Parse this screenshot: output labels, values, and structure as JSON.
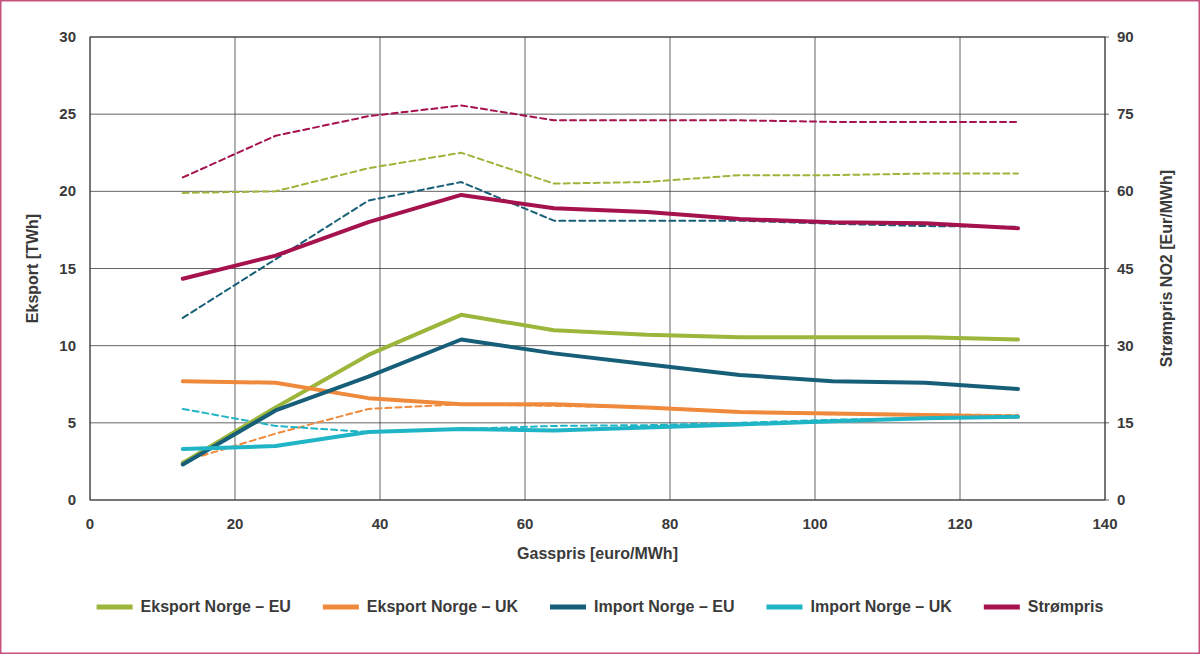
{
  "chart_data": {
    "type": "line",
    "x_label": "Gasspris [euro/MWh]",
    "y_label": "Eksport [TWh]",
    "y2_label": "Strømpris NO2 [Eur/MWh]",
    "x": [
      12.8,
      25.6,
      38.4,
      51.2,
      64,
      76.8,
      89.6,
      102.4,
      115.2,
      128
    ],
    "xlim": [
      0,
      140
    ],
    "xticks": [
      0,
      20,
      40,
      60,
      80,
      100,
      120,
      140
    ],
    "ylim": [
      0,
      30
    ],
    "yticks": [
      0,
      5,
      10,
      15,
      20,
      25,
      30
    ],
    "y2lim": [
      0,
      90
    ],
    "y2ticks": [
      0,
      15,
      30,
      45,
      60,
      75,
      90
    ],
    "grid": true,
    "legend": "bottom",
    "series": [
      {
        "name": "Eksport Norge – EU",
        "color": "#9cb53b",
        "line_style": "solid",
        "values": [
          2.4,
          6.0,
          9.4,
          12.0,
          11.0,
          10.7,
          10.55,
          10.55,
          10.55,
          10.4
        ]
      },
      {
        "name": "Eksport Norge – UK",
        "color": "#ef8a3c",
        "line_style": "solid",
        "values": [
          7.7,
          7.6,
          6.6,
          6.2,
          6.2,
          6.0,
          5.7,
          5.6,
          5.5,
          5.4
        ]
      },
      {
        "name": "Import Norge – EU",
        "color": "#175f78",
        "line_style": "solid",
        "values": [
          2.3,
          5.8,
          8.0,
          10.4,
          9.5,
          8.8,
          8.1,
          7.7,
          7.6,
          7.2
        ]
      },
      {
        "name": "Import Norge – UK",
        "color": "#1fb5c6",
        "line_style": "solid",
        "values": [
          3.3,
          3.5,
          4.4,
          4.6,
          4.5,
          4.7,
          4.9,
          5.1,
          5.3,
          5.4
        ]
      },
      {
        "name": "Strømpris",
        "color": "#a5124e",
        "line_style": "solid",
        "axis": "y2",
        "values": [
          43,
          47.5,
          54,
          59.3,
          56.7,
          56,
          54.6,
          54,
          53.8,
          52.8
        ]
      },
      {
        "color": "#9cb53b",
        "line_style": "dashed",
        "values": [
          19.9,
          20.0,
          21.5,
          22.5,
          20.5,
          20.6,
          21.05,
          21.05,
          21.15,
          21.15
        ]
      },
      {
        "color": "#ef8a3c",
        "line_style": "dashed",
        "values": [
          2.5,
          4.3,
          5.9,
          6.2,
          6.1,
          6.0,
          5.7,
          5.55,
          5.55,
          5.5
        ]
      },
      {
        "color": "#175f78",
        "line_style": "dashed",
        "values": [
          11.8,
          15.6,
          19.4,
          20.6,
          18.1,
          18.1,
          18.1,
          17.9,
          17.75,
          17.7
        ]
      },
      {
        "color": "#1fb5c6",
        "line_style": "dashed",
        "values": [
          5.9,
          4.8,
          4.4,
          4.6,
          4.8,
          4.85,
          5.0,
          5.2,
          5.3,
          5.35
        ]
      },
      {
        "color": "#a5124e",
        "line_style": "dashed",
        "axis": "y2",
        "values": [
          62.7,
          70.8,
          74.6,
          76.7,
          73.8,
          73.8,
          73.8,
          73.5,
          73.5,
          73.5
        ]
      }
    ]
  }
}
